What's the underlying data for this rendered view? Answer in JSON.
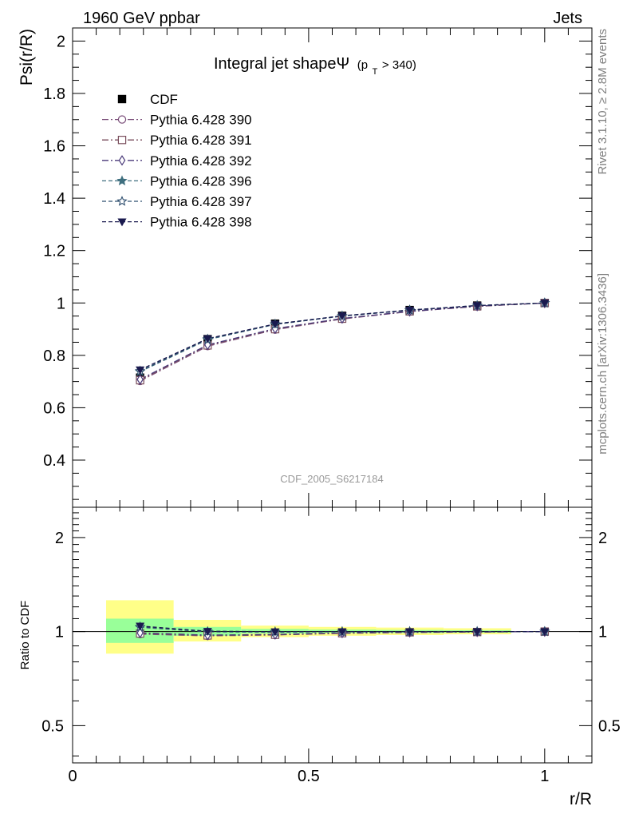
{
  "header": {
    "left": "1960 GeV ppbar",
    "right": "Jets"
  },
  "side_labels": {
    "top": "Rivet 3.1.10, ≥ 2.8M events",
    "bottom": "mcplots.cern.ch [arXiv:1306.3436]"
  },
  "chart_data": {
    "type": "line",
    "title": "Integral jet shapeΨ",
    "title_sub": "(p",
    "title_sub_index": "T",
    "title_sub_tail": " > 340)",
    "watermark": "CDF_2005_S6217184",
    "xlabel": "r/R",
    "ylabel": "Psi(r/R)",
    "ratio_ylabel": "Ratio to CDF",
    "xlim": [
      0,
      1.1
    ],
    "ylim": [
      0.22,
      2.05
    ],
    "ratio_ylim": [
      0.38,
      2.5
    ],
    "ratio_log_scale": true,
    "x_ticks": [
      0,
      0.5,
      1
    ],
    "x_tick_labels": [
      "0",
      "0.5",
      "1"
    ],
    "y_ticks": [
      0.4,
      0.6,
      0.8,
      1,
      1.2,
      1.4,
      1.6,
      1.8,
      2
    ],
    "y_tick_labels": [
      "0.4",
      "0.6",
      "0.8",
      "1",
      "1.2",
      "1.4",
      "1.6",
      "1.8",
      "2"
    ],
    "ratio_ticks": [
      0.5,
      1,
      2
    ],
    "ratio_tick_labels": [
      "0.5",
      "1",
      "2"
    ],
    "legend_position": "top-left",
    "x": [
      0.143,
      0.286,
      0.429,
      0.571,
      0.714,
      0.857,
      1.0
    ],
    "data": {
      "name": "CDF",
      "color": "#000000",
      "values": [
        0.715,
        0.862,
        0.921,
        0.951,
        0.973,
        0.99,
        1.0
      ],
      "band_edges": [
        0.071,
        0.214,
        0.357,
        0.5,
        0.643,
        0.786,
        0.929
      ],
      "band_inner_ratio": [
        [
          0.92,
          1.1
        ],
        [
          0.97,
          1.035
        ],
        [
          0.985,
          1.02
        ],
        [
          0.99,
          1.015
        ],
        [
          0.99,
          1.012
        ],
        [
          0.992,
          1.01
        ]
      ],
      "band_outer_ratio": [
        [
          0.85,
          1.26
        ],
        [
          0.93,
          1.09
        ],
        [
          0.96,
          1.045
        ],
        [
          0.97,
          1.035
        ],
        [
          0.975,
          1.03
        ],
        [
          0.98,
          1.025
        ]
      ],
      "band_inner_color": "#99ff99",
      "band_outer_color": "#ffff88"
    },
    "series": [
      {
        "name": "Pythia 6.428 390",
        "color": "#7b4f7a",
        "marker": "circle-open",
        "dash": "8,3,2,3",
        "values": [
          0.702,
          0.835,
          0.898,
          0.939,
          0.967,
          0.987,
          1.0
        ]
      },
      {
        "name": "Pythia 6.428 391",
        "color": "#7b4f5e",
        "marker": "square-open",
        "dash": "8,3,2,3",
        "values": [
          0.705,
          0.838,
          0.9,
          0.94,
          0.968,
          0.987,
          1.0
        ]
      },
      {
        "name": "Pythia 6.428 392",
        "color": "#4a3a7a",
        "marker": "diamond-open",
        "dash": "8,3,2,3",
        "values": [
          0.708,
          0.84,
          0.902,
          0.941,
          0.968,
          0.988,
          1.0
        ]
      },
      {
        "name": "Pythia 6.428 396",
        "color": "#3f6f7f",
        "marker": "star-filled",
        "dash": "5,3",
        "values": [
          0.738,
          0.86,
          0.918,
          0.95,
          0.972,
          0.99,
          1.0
        ]
      },
      {
        "name": "Pythia 6.428 397",
        "color": "#2f4f6f",
        "marker": "star-open",
        "dash": "5,3",
        "values": [
          0.74,
          0.862,
          0.919,
          0.95,
          0.973,
          0.99,
          1.0
        ]
      },
      {
        "name": "Pythia 6.428 398",
        "color": "#1a1a4f",
        "marker": "triangle-down-filled",
        "dash": "5,3",
        "values": [
          0.745,
          0.864,
          0.92,
          0.951,
          0.973,
          0.99,
          1.0
        ]
      }
    ]
  }
}
